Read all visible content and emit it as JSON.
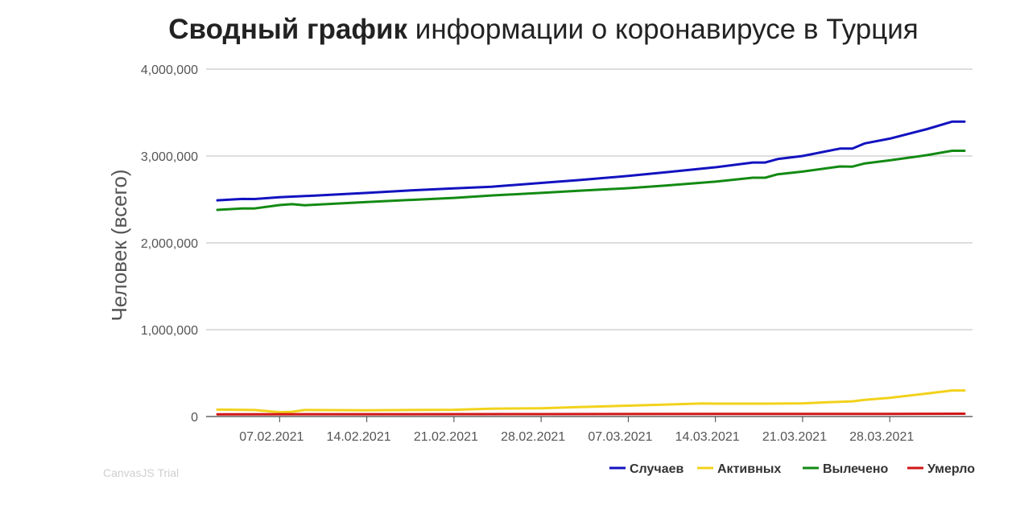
{
  "title_bold": "Сводный график",
  "title_rest": " информации о коронавирусе в Турция",
  "watermark": "CanvasJS Trial",
  "chart_data": {
    "type": "line",
    "title": "Сводный график информации о коронавирусе в Турция",
    "xlabel": "",
    "ylabel": "Человек (всего)",
    "x_start": "02.02.2021",
    "x_end": "03.04.2021",
    "x_tick_labels": [
      "07.02.2021",
      "14.02.2021",
      "21.02.2021",
      "28.02.2021",
      "07.03.2021",
      "14.03.2021",
      "21.03.2021",
      "28.03.2021"
    ],
    "y_tick_labels": [
      "0",
      "1,000,000",
      "2,000,000",
      "3,000,000",
      "4,000,000"
    ],
    "ylim": [
      0,
      4000000
    ],
    "grid": true,
    "legend_position": "bottom-right",
    "series": [
      {
        "name": "Случаев",
        "color": "#1212c0",
        "points": [
          [
            "02.02.2021",
            2490000
          ],
          [
            "04.02.2021",
            2506000
          ],
          [
            "05.02.2021",
            2505000
          ],
          [
            "07.02.2021",
            2525000
          ],
          [
            "10.02.2021",
            2545000
          ],
          [
            "14.02.2021",
            2575000
          ],
          [
            "17.02.2021",
            2600000
          ],
          [
            "21.02.2021",
            2627000
          ],
          [
            "24.02.2021",
            2645000
          ],
          [
            "28.02.2021",
            2690000
          ],
          [
            "03.03.2021",
            2722000
          ],
          [
            "07.03.2021",
            2770000
          ],
          [
            "10.03.2021",
            2812000
          ],
          [
            "14.03.2021",
            2870000
          ],
          [
            "17.03.2021",
            2925000
          ],
          [
            "18.03.2021",
            2925000
          ],
          [
            "19.03.2021",
            2965000
          ],
          [
            "21.03.2021",
            3000000
          ],
          [
            "24.03.2021",
            3085000
          ],
          [
            "25.03.2021",
            3085000
          ],
          [
            "26.03.2021",
            3145000
          ],
          [
            "28.03.2021",
            3200000
          ],
          [
            "31.03.2021",
            3310000
          ],
          [
            "02.04.2021",
            3395000
          ],
          [
            "03.04.2021",
            3395000
          ]
        ]
      },
      {
        "name": "Активных",
        "color": "#f2d21b",
        "points": [
          [
            "02.02.2021",
            80000
          ],
          [
            "05.02.2021",
            75000
          ],
          [
            "07.02.2021",
            50000
          ],
          [
            "08.02.2021",
            55000
          ],
          [
            "09.02.2021",
            75000
          ],
          [
            "14.02.2021",
            72000
          ],
          [
            "21.02.2021",
            78000
          ],
          [
            "24.02.2021",
            90000
          ],
          [
            "28.02.2021",
            95000
          ],
          [
            "03.03.2021",
            108000
          ],
          [
            "07.03.2021",
            125000
          ],
          [
            "10.03.2021",
            138000
          ],
          [
            "13.03.2021",
            150000
          ],
          [
            "14.03.2021",
            148000
          ],
          [
            "18.03.2021",
            148000
          ],
          [
            "21.03.2021",
            152000
          ],
          [
            "23.03.2021",
            165000
          ],
          [
            "25.03.2021",
            175000
          ],
          [
            "26.03.2021",
            192000
          ],
          [
            "28.03.2021",
            215000
          ],
          [
            "31.03.2021",
            265000
          ],
          [
            "02.04.2021",
            300000
          ],
          [
            "03.04.2021",
            300000
          ]
        ]
      },
      {
        "name": "Вылечено",
        "color": "#138a13",
        "points": [
          [
            "02.02.2021",
            2380000
          ],
          [
            "04.02.2021",
            2396000
          ],
          [
            "05.02.2021",
            2396000
          ],
          [
            "07.02.2021",
            2435000
          ],
          [
            "08.02.2021",
            2445000
          ],
          [
            "09.02.2021",
            2432000
          ],
          [
            "14.02.2021",
            2470000
          ],
          [
            "21.02.2021",
            2518000
          ],
          [
            "24.02.2021",
            2545000
          ],
          [
            "28.02.2021",
            2575000
          ],
          [
            "03.03.2021",
            2600000
          ],
          [
            "07.03.2021",
            2630000
          ],
          [
            "10.03.2021",
            2660000
          ],
          [
            "14.03.2021",
            2705000
          ],
          [
            "17.03.2021",
            2750000
          ],
          [
            "18.03.2021",
            2750000
          ],
          [
            "19.03.2021",
            2790000
          ],
          [
            "21.03.2021",
            2820000
          ],
          [
            "24.03.2021",
            2880000
          ],
          [
            "25.03.2021",
            2878000
          ],
          [
            "26.03.2021",
            2915000
          ],
          [
            "28.03.2021",
            2950000
          ],
          [
            "31.03.2021",
            3010000
          ],
          [
            "02.04.2021",
            3060000
          ],
          [
            "03.04.2021",
            3060000
          ]
        ]
      },
      {
        "name": "Умерло",
        "color": "#d11515",
        "points": [
          [
            "02.02.2021",
            26000
          ],
          [
            "14.02.2021",
            27000
          ],
          [
            "28.02.2021",
            28000
          ],
          [
            "14.03.2021",
            29500
          ],
          [
            "28.03.2021",
            31000
          ],
          [
            "03.04.2021",
            32000
          ]
        ]
      }
    ]
  }
}
